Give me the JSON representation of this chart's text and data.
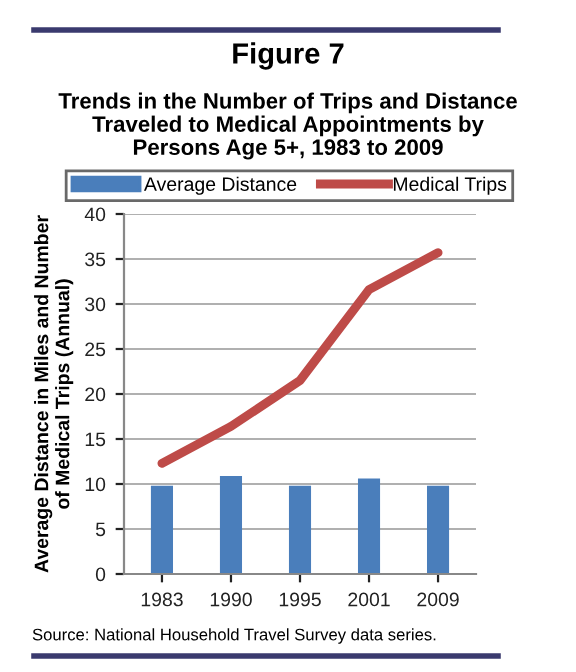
{
  "chart_data": {
    "type": "bar",
    "title": "Figure 7",
    "subtitle": "Trends in the Number of Trips and Distance\nTraveled to Medical Appointments by\nPersons Age 5+, 1983 to 2009",
    "ylabel": "Average Distance in Miles and Number\nof Medical Trips (Annual)",
    "categories": [
      "1983",
      "1990",
      "1995",
      "2001",
      "2009"
    ],
    "series": [
      {
        "name": "Average Distance",
        "color": "#4a7ebb",
        "values": [
          9.8,
          10.9,
          9.8,
          10.6,
          9.8
        ]
      },
      {
        "name": "Medical Trips",
        "color": "#be4b48",
        "type": "line",
        "values": [
          12.3,
          16.4,
          21.5,
          31.6,
          35.7
        ]
      }
    ],
    "ylim": [
      0,
      40
    ],
    "yticks": [
      0,
      5,
      10,
      15,
      20,
      25,
      30,
      35,
      40
    ],
    "grid": "y",
    "legend": "top",
    "annotations": [
      "Source: National Household Travel Survey data series."
    ]
  }
}
